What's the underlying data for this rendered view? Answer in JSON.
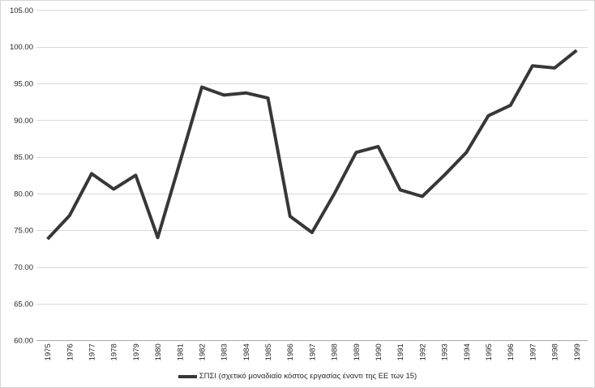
{
  "chart_data": {
    "type": "line",
    "title": "",
    "xlabel": "",
    "ylabel": "",
    "categories": [
      "1975",
      "1976",
      "1977",
      "1978",
      "1979",
      "1980",
      "1981",
      "1982",
      "1983",
      "1984",
      "1985",
      "1986",
      "1987",
      "1988",
      "1989",
      "1990",
      "1991",
      "1992",
      "1993",
      "1994",
      "1995",
      "1996",
      "1997",
      "1998",
      "1999"
    ],
    "series": [
      {
        "name": "ΣΠΣΙ (σχετικό μοναδιαίο κόστος εργασίας έναντι της ΕΕ των 15)",
        "values": [
          73.8,
          77.0,
          82.7,
          80.6,
          82.5,
          74.0,
          84.2,
          94.5,
          93.4,
          93.7,
          93.0,
          76.9,
          74.7,
          79.9,
          85.6,
          86.4,
          80.5,
          79.6,
          82.5,
          85.6,
          90.6,
          92.0,
          97.4,
          97.1,
          99.5
        ]
      }
    ],
    "ylim": [
      60,
      105
    ],
    "ytick_step": 5,
    "ytick_labels": [
      "105.00",
      "100.00",
      "95.00",
      "90.00",
      "85.00",
      "80.00",
      "75.00",
      "70.00",
      "65.00",
      "60.00"
    ],
    "grid": true,
    "legend_position": "bottom"
  },
  "colors": {
    "line": "#373737",
    "gridline": "#d9d9d9",
    "axis_line": "#ababab",
    "tick_label": "#262626",
    "legend_text": "#262626",
    "background": "#ffffff",
    "border": "#d6d6d6"
  }
}
